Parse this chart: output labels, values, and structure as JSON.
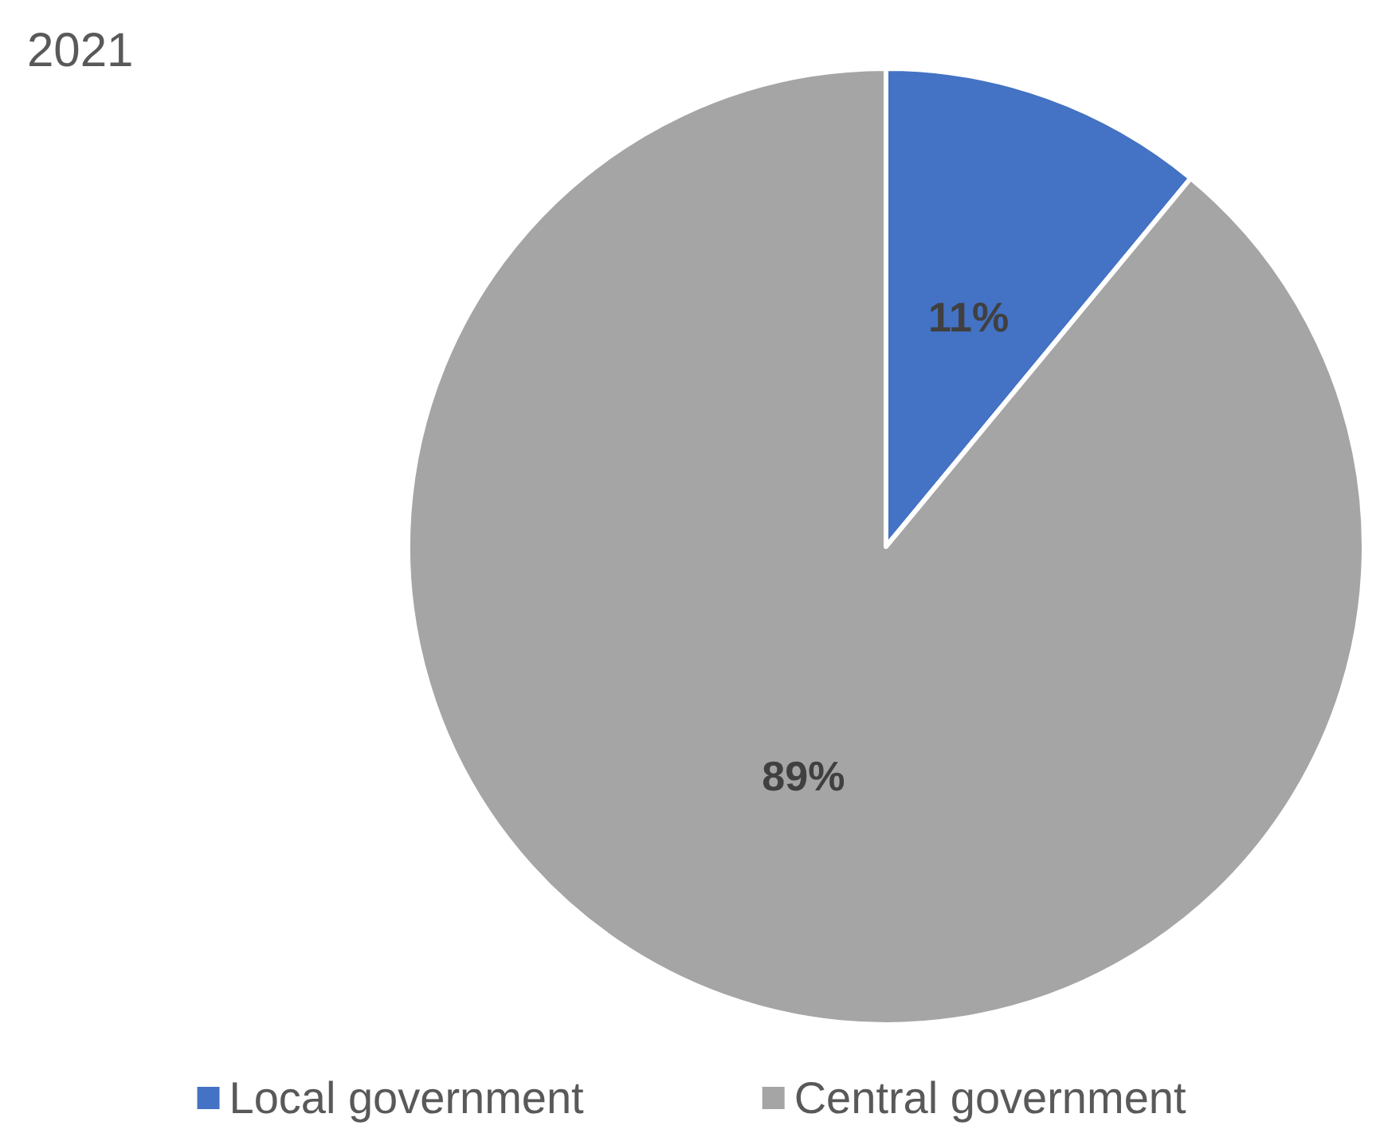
{
  "chart_data": {
    "type": "pie",
    "title": "2021",
    "categories": [
      "Local government",
      "Central government"
    ],
    "values": [
      11,
      89
    ],
    "colors": [
      "#4472c4",
      "#a5a5a5"
    ],
    "value_labels": [
      "11%",
      "89%"
    ],
    "legend": "bottom"
  }
}
